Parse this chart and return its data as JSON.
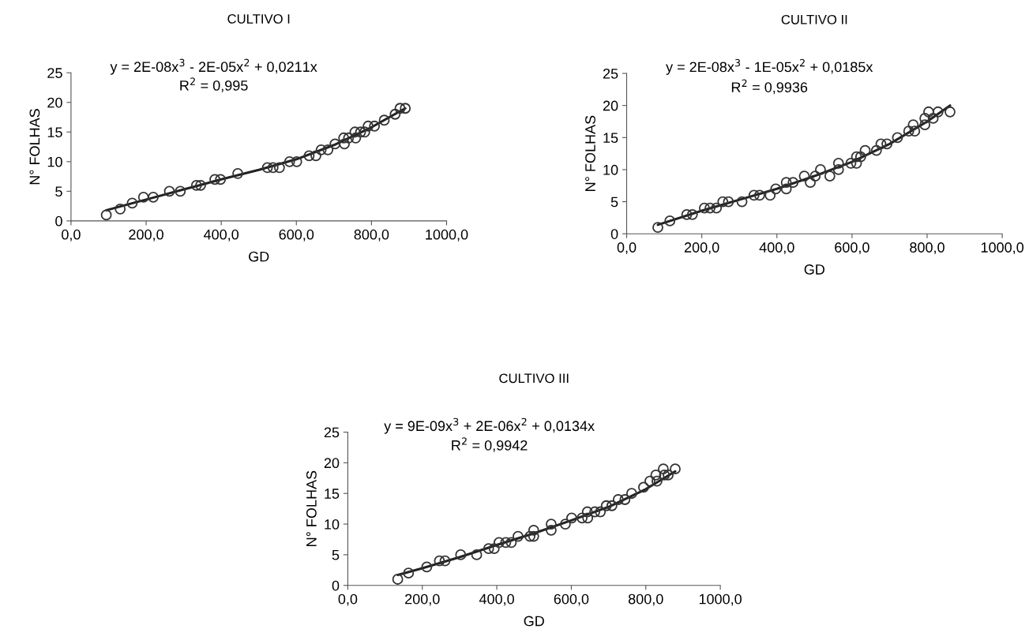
{
  "chart_data": [
    {
      "type": "scatter",
      "title": "CULTIVO I",
      "xlabel": "GD",
      "ylabel": "N° FOLHAS",
      "annotations": [
        "y = 2E-08x$^{3}$ - 2E-05x$^{2}$ + 0,0211x",
        "R$^{2}$ = 0,995"
      ],
      "marker": "circle",
      "grid": false,
      "legend": false,
      "xlim": [
        0,
        1000
      ],
      "ylim": [
        0,
        25
      ],
      "xticks": [
        {
          "value": 0,
          "label": "0,0"
        },
        {
          "value": 200,
          "label": "200,0"
        },
        {
          "value": 400,
          "label": "400,0"
        },
        {
          "value": 600,
          "label": "600,0"
        },
        {
          "value": 800,
          "label": "800,0"
        },
        {
          "value": 1000,
          "label": "1000,0"
        }
      ],
      "yticks": [
        0,
        5,
        10,
        15,
        20,
        25
      ],
      "series": [
        {
          "color": "#333333",
          "x": [
            94,
            131,
            163,
            193,
            219,
            262,
            291,
            334,
            345,
            383,
            398,
            444,
            523,
            538,
            555,
            582,
            601,
            634,
            652,
            666,
            684,
            703,
            726,
            728,
            739,
            756,
            758,
            771,
            782,
            791,
            808,
            834,
            863,
            876,
            890
          ],
          "values": [
            1,
            2,
            3,
            4,
            4,
            5,
            5,
            6,
            6,
            7,
            7,
            8,
            9,
            9,
            9,
            10,
            10,
            11,
            11,
            12,
            12,
            13,
            14,
            13,
            14,
            15,
            14,
            15,
            15,
            16,
            16,
            17,
            18,
            19,
            19
          ]
        },
        {
          "type": "line",
          "marker": "none",
          "color": "#222222",
          "x": [
            94,
            200,
            300,
            400,
            500,
            600,
            700,
            800,
            890
          ],
          "values": [
            1.8,
            3.6,
            5.3,
            7.0,
            8.6,
            10.4,
            12.8,
            15.8,
            19.0
          ]
        }
      ]
    },
    {
      "type": "scatter",
      "title": "CULTIVO II",
      "xlabel": "GD",
      "ylabel": "N° FOLHAS",
      "annotations": [
        "y = 2E-08x$^{3}$ - 1E-05x$^{2}$ + 0,0185x",
        "R$^{2}$ = 0,9936"
      ],
      "marker": "circle",
      "grid": false,
      "legend": false,
      "xlim": [
        0,
        1000
      ],
      "ylim": [
        0,
        25
      ],
      "xticks": [
        {
          "value": 0,
          "label": "0,0"
        },
        {
          "value": 200,
          "label": "200,0"
        },
        {
          "value": 400,
          "label": "400,0"
        },
        {
          "value": 600,
          "label": "600,0"
        },
        {
          "value": 800,
          "label": "800,0"
        },
        {
          "value": 1000,
          "label": "1000,0"
        }
      ],
      "yticks": [
        0,
        5,
        10,
        15,
        20,
        25
      ],
      "series": [
        {
          "color": "#333333",
          "x": [
            83,
            115,
            160,
            175,
            207,
            222,
            239,
            256,
            271,
            307,
            339,
            354,
            382,
            397,
            425,
            425,
            443,
            473,
            489,
            502,
            516,
            541,
            564,
            564,
            597,
            612,
            612,
            623,
            635,
            665,
            677,
            693,
            721,
            751,
            763,
            767,
            794,
            794,
            804,
            816,
            829,
            861
          ],
          "values": [
            1,
            2,
            3,
            3,
            4,
            4,
            4,
            5,
            5,
            5,
            6,
            6,
            6,
            7,
            7,
            8,
            8,
            9,
            8,
            9,
            10,
            9,
            10,
            11,
            11,
            11,
            12,
            12,
            13,
            13,
            14,
            14,
            15,
            16,
            17,
            16,
            17,
            18,
            19,
            18,
            19,
            19
          ]
        },
        {
          "type": "line",
          "marker": "none",
          "color": "#222222",
          "x": [
            83,
            200,
            300,
            400,
            500,
            600,
            700,
            800,
            861
          ],
          "values": [
            1.4,
            3.6,
            5.3,
            7.0,
            9.0,
            11.2,
            14.0,
            17.5,
            20.0
          ]
        }
      ]
    },
    {
      "type": "scatter",
      "title": "CULTIVO III",
      "xlabel": "GD",
      "ylabel": "N° FOLHAS",
      "annotations": [
        "y = 9E-09x$^{3}$ + 2E-06x$^{2}$ + 0,0134x",
        "R$^{2}$ = 0,9942"
      ],
      "marker": "circle",
      "grid": false,
      "legend": false,
      "xlim": [
        0,
        1000
      ],
      "ylim": [
        0,
        25
      ],
      "xticks": [
        {
          "value": 0,
          "label": "0,0"
        },
        {
          "value": 200,
          "label": "200,0"
        },
        {
          "value": 400,
          "label": "400,0"
        },
        {
          "value": 600,
          "label": "600,0"
        },
        {
          "value": 800,
          "label": "800,0"
        },
        {
          "value": 1000,
          "label": "1000,0"
        }
      ],
      "yticks": [
        0,
        5,
        10,
        15,
        20,
        25
      ],
      "series": [
        {
          "color": "#333333",
          "x": [
            134,
            163,
            212,
            246,
            261,
            303,
            346,
            378,
            393,
            406,
            424,
            439,
            457,
            489,
            499,
            499,
            546,
            546,
            584,
            601,
            629,
            643,
            644,
            663,
            678,
            694,
            709,
            726,
            744,
            762,
            794,
            811,
            827,
            830,
            847,
            850,
            860,
            879
          ],
          "values": [
            1,
            2,
            3,
            4,
            4,
            5,
            5,
            6,
            6,
            7,
            7,
            7,
            8,
            8,
            8,
            9,
            10,
            9,
            10,
            11,
            11,
            12,
            11,
            12,
            12,
            13,
            13,
            14,
            14,
            15,
            16,
            17,
            18,
            17,
            19,
            18,
            18,
            19
          ]
        },
        {
          "type": "line",
          "marker": "none",
          "color": "#222222",
          "x": [
            134,
            200,
            300,
            400,
            500,
            600,
            700,
            800,
            879
          ],
          "values": [
            1.7,
            2.8,
            4.6,
            6.6,
            8.5,
            10.6,
            12.8,
            15.7,
            18.6
          ]
        }
      ]
    }
  ]
}
